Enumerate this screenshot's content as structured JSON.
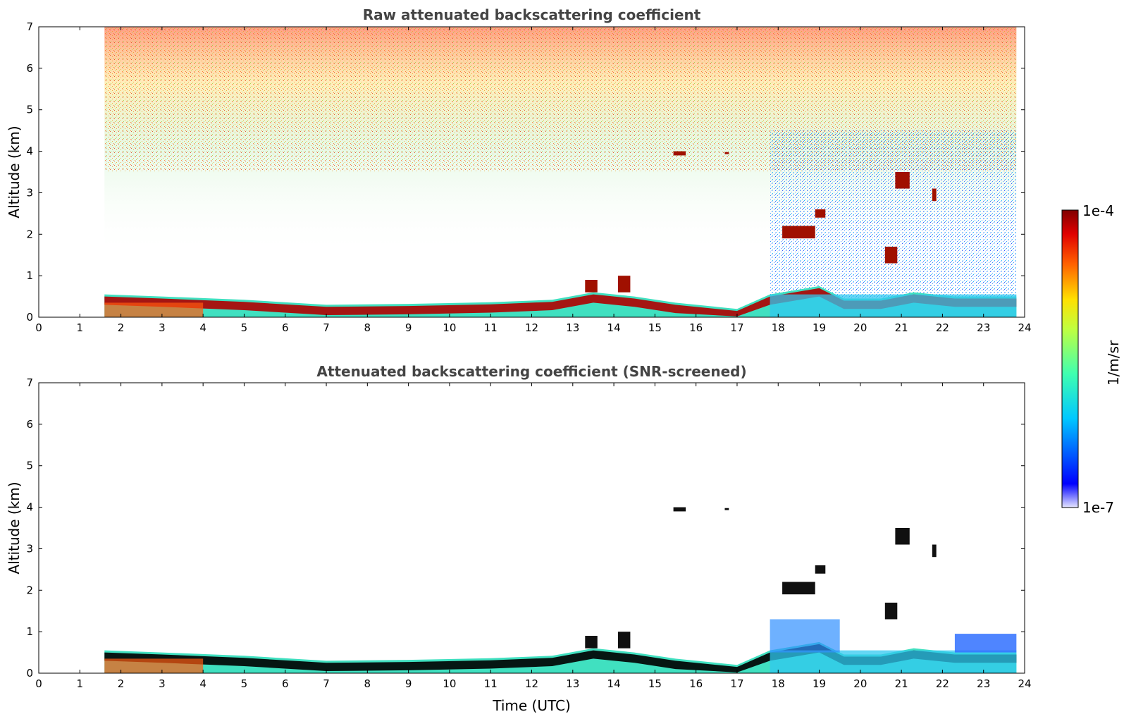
{
  "chart_data": [
    {
      "type": "heatmap",
      "title": "Raw attenuated backscattering coefficient",
      "xlabel": "",
      "ylabel": "Altitude (km)",
      "xlim": [
        0,
        24
      ],
      "ylim": [
        0,
        7
      ],
      "xticks": [
        "0",
        "1",
        "2",
        "3",
        "4",
        "5",
        "6",
        "7",
        "8",
        "9",
        "10",
        "11",
        "12",
        "13",
        "14",
        "15",
        "16",
        "17",
        "18",
        "19",
        "20",
        "21",
        "22",
        "23",
        "24"
      ],
      "yticks": [
        "0",
        "1",
        "2",
        "3",
        "4",
        "5",
        "6",
        "7"
      ],
      "data_time_range": [
        1.6,
        23.8
      ],
      "boundary_layer_top_km": [
        [
          1.6,
          0.55
        ],
        [
          3,
          0.5
        ],
        [
          5,
          0.42
        ],
        [
          7,
          0.3
        ],
        [
          9,
          0.32
        ],
        [
          11,
          0.36
        ],
        [
          12.5,
          0.42
        ],
        [
          13.5,
          0.6
        ],
        [
          14.5,
          0.5
        ],
        [
          15.5,
          0.35
        ],
        [
          17,
          0.2
        ],
        [
          17.8,
          0.55
        ],
        [
          19,
          0.75
        ],
        [
          19.6,
          0.45
        ],
        [
          20.5,
          0.45
        ],
        [
          21.3,
          0.6
        ],
        [
          22.3,
          0.5
        ],
        [
          23.8,
          0.5
        ]
      ],
      "cloud_features": [
        {
          "time": [
            15.45,
            15.75
          ],
          "altitude_km": [
            3.9,
            4.0
          ]
        },
        {
          "time": [
            16.7,
            16.8
          ],
          "altitude_km": [
            3.93,
            3.98
          ]
        },
        {
          "time": [
            20.85,
            21.2
          ],
          "altitude_km": [
            3.1,
            3.5
          ]
        },
        {
          "time": [
            21.75,
            21.85
          ],
          "altitude_km": [
            2.8,
            3.1
          ]
        },
        {
          "time": [
            18.1,
            18.9
          ],
          "altitude_km": [
            1.9,
            2.2
          ]
        },
        {
          "time": [
            18.9,
            19.15
          ],
          "altitude_km": [
            2.4,
            2.6
          ]
        },
        {
          "time": [
            20.6,
            20.9
          ],
          "altitude_km": [
            1.3,
            1.7
          ]
        },
        {
          "time": [
            13.3,
            13.6
          ],
          "altitude_km": [
            0.6,
            0.9
          ]
        },
        {
          "time": [
            14.1,
            14.4
          ],
          "altitude_km": [
            0.6,
            1.0
          ]
        }
      ]
    },
    {
      "type": "heatmap",
      "title": "Attenuated backscattering coefficient (SNR-screened)",
      "xlabel": "Time (UTC)",
      "ylabel": "Altitude (km)",
      "xlim": [
        0,
        24
      ],
      "ylim": [
        0,
        7
      ],
      "xticks": [
        "0",
        "1",
        "2",
        "3",
        "4",
        "5",
        "6",
        "7",
        "8",
        "9",
        "10",
        "11",
        "12",
        "13",
        "14",
        "15",
        "16",
        "17",
        "18",
        "19",
        "20",
        "21",
        "22",
        "23",
        "24"
      ],
      "yticks": [
        "0",
        "1",
        "2",
        "3",
        "4",
        "5",
        "6",
        "7"
      ],
      "data_time_range": [
        1.6,
        23.8
      ]
    }
  ],
  "colorbar": {
    "label": "1/m/sr",
    "max_label": "1e-4",
    "min_label": "1e-7",
    "colors": [
      "#e6e6ff",
      "#0000ff",
      "#00c8ff",
      "#40ffb0",
      "#c0ff40",
      "#ffe000",
      "#ff6000",
      "#e00000",
      "#800000"
    ]
  }
}
